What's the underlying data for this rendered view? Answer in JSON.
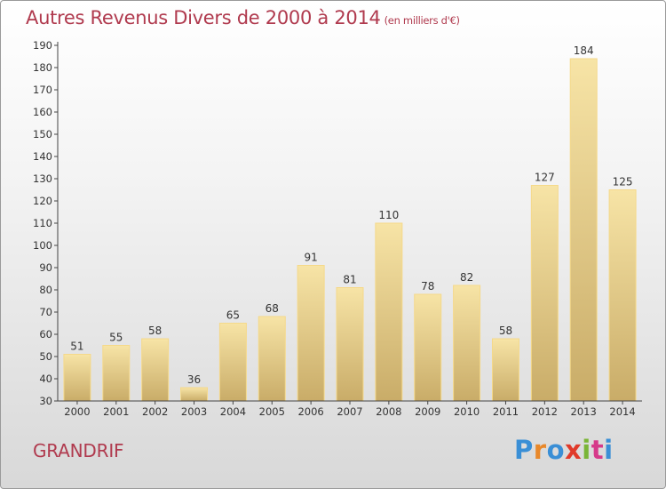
{
  "header": {
    "title": "Autres Revenus Divers de 2000 à 2014",
    "subtitle": "(en milliers d'€)"
  },
  "footer": {
    "location": "GRANDRIF",
    "logo_text": "Proxiti",
    "logo_colors": [
      "#3a8fd6",
      "#e8882a",
      "#3a8fd6",
      "#e03a2a",
      "#7ab536",
      "#d63a8a",
      "#3a8fd6"
    ]
  },
  "colors": {
    "title": "#b03a4e",
    "bar_top": "#f7e4a6",
    "bar_bottom": "#c9ac68",
    "bar_stroke": "#f5d98a",
    "axis": "#444444"
  },
  "chart_data": {
    "type": "bar",
    "title": "Autres Revenus Divers de 2000 à 2014",
    "subtitle": "(en milliers d'€)",
    "xlabel": "",
    "ylabel": "",
    "categories": [
      "2000",
      "2001",
      "2002",
      "2003",
      "2004",
      "2005",
      "2006",
      "2007",
      "2008",
      "2009",
      "2010",
      "2011",
      "2012",
      "2013",
      "2014"
    ],
    "values": [
      51,
      55,
      58,
      36,
      65,
      68,
      91,
      81,
      110,
      78,
      82,
      58,
      127,
      184,
      125
    ],
    "ylim": [
      30,
      190
    ],
    "yticks": [
      30,
      40,
      50,
      60,
      70,
      80,
      90,
      100,
      110,
      120,
      130,
      140,
      150,
      160,
      170,
      180,
      190
    ],
    "grid": false,
    "legend": "none"
  }
}
